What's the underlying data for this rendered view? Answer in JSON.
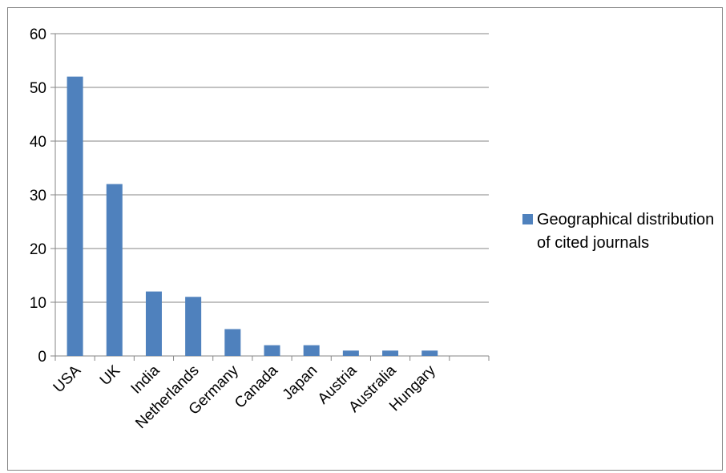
{
  "chart_data": {
    "type": "bar",
    "categories": [
      "USA",
      "UK",
      "India",
      "Netherlands",
      "Germany",
      "Canada",
      "Japan",
      "Austria",
      "Australia",
      "Hungary",
      ""
    ],
    "series": [
      {
        "name": "Geographical distribution of cited journals",
        "values": [
          52,
          32,
          12,
          11,
          5,
          2,
          2,
          1,
          1,
          1,
          null
        ]
      }
    ],
    "ylim": [
      0,
      60
    ],
    "yticks": [
      0,
      10,
      20,
      30,
      40,
      50,
      60
    ],
    "grid": true,
    "legend_position": "right",
    "colors": {
      "bar": "#4f81bd",
      "grid": "#868686",
      "axis": "#868686"
    }
  }
}
